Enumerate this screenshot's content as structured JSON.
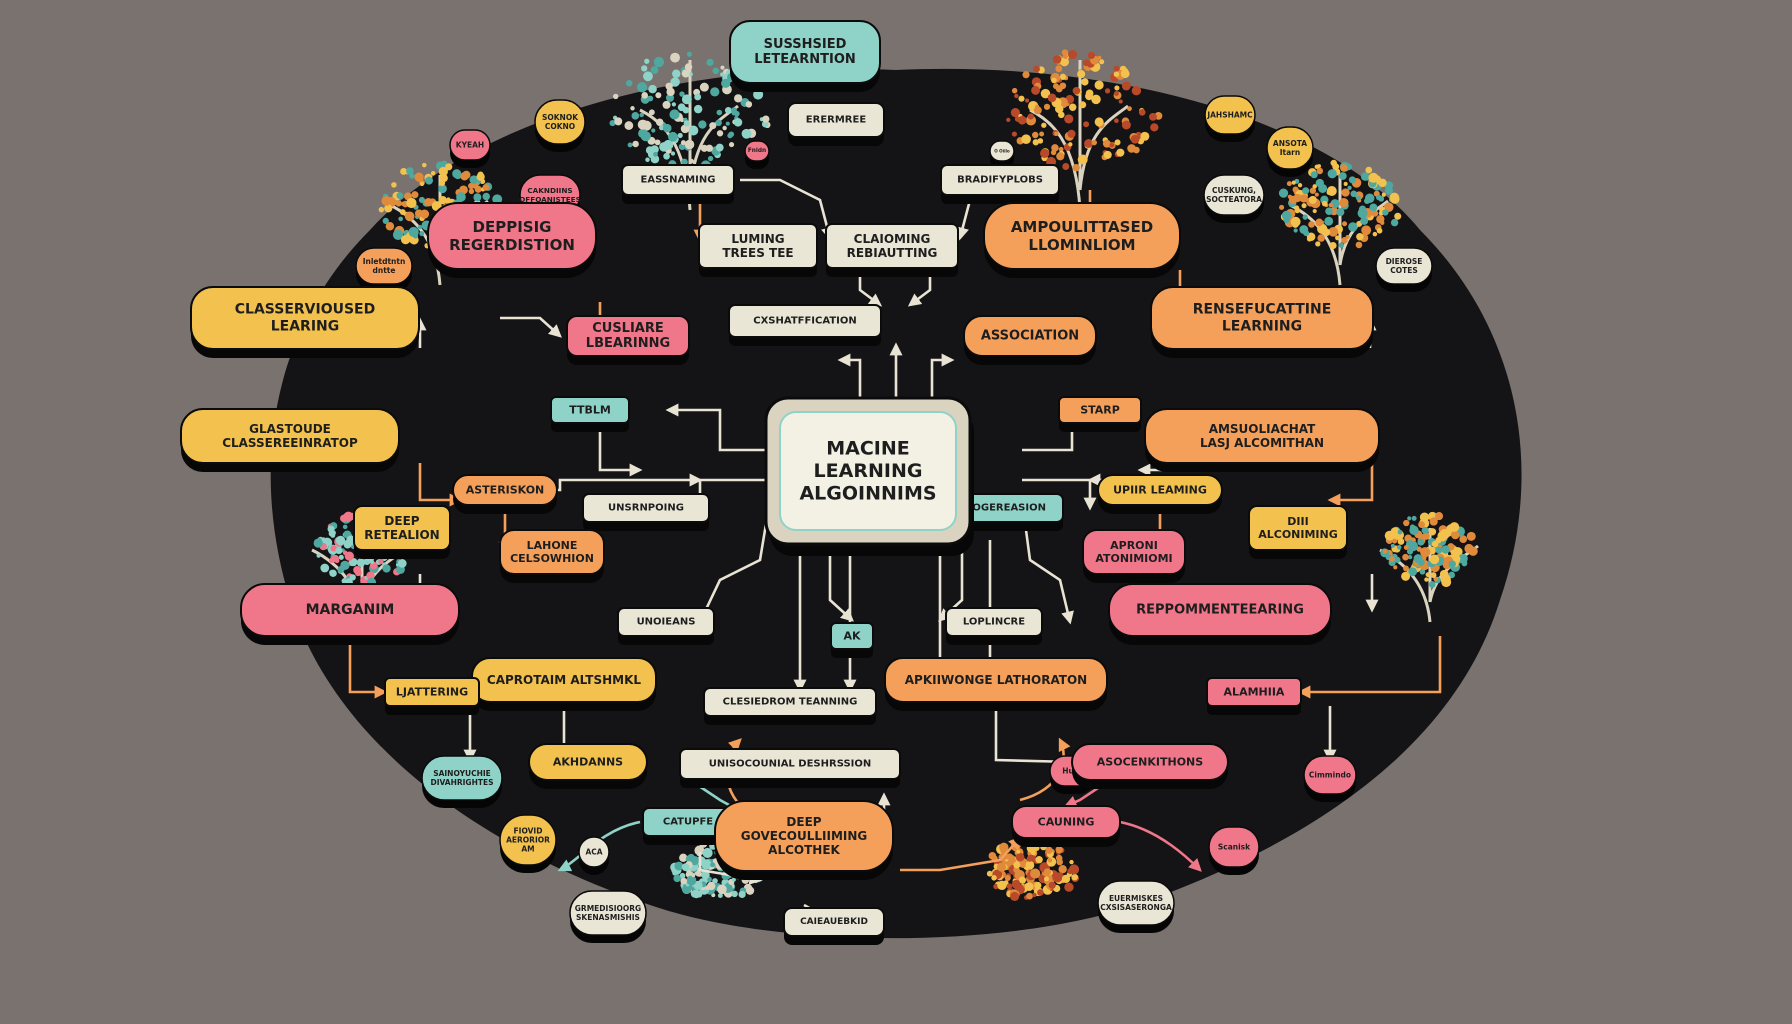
{
  "center": {
    "lines": [
      "MACINE",
      "LEARNING",
      "ALGOINNIMS"
    ]
  },
  "nodes": [
    {
      "id": "n01",
      "lines": [
        "SUSSHSIED",
        "LETEARNTION"
      ],
      "color": "#8fd3c8"
    },
    {
      "id": "n02",
      "lines": [
        "ERERMREE"
      ],
      "color": "#eae6d6"
    },
    {
      "id": "n03",
      "lines": [
        "EASSNAMING"
      ],
      "color": "#eae6d6"
    },
    {
      "id": "n04",
      "lines": [
        "BRADIFYPLOBS"
      ],
      "color": "#eae6d6"
    },
    {
      "id": "n05",
      "lines": [
        "DEPPISIG",
        "REGERDISTION"
      ],
      "color": "#f0768a"
    },
    {
      "id": "n06",
      "lines": [
        "LUMING",
        "TREES TEE"
      ],
      "color": "#eae6d6"
    },
    {
      "id": "n07",
      "lines": [
        "CLAIOMING",
        "REBIAUTTING"
      ],
      "color": "#eae6d6"
    },
    {
      "id": "n08",
      "lines": [
        "AMPOULITTASED",
        "LLOMINLIOM"
      ],
      "color": "#f5a05a"
    },
    {
      "id": "n09",
      "lines": [
        "CLASSERVIOUSED",
        "LEARING"
      ],
      "color": "#f2c14e"
    },
    {
      "id": "n10",
      "lines": [
        "CUSLIARE",
        "LBEARINNG"
      ],
      "color": "#f0768a"
    },
    {
      "id": "n11",
      "lines": [
        "CXSHATFFICATION"
      ],
      "color": "#eae6d6"
    },
    {
      "id": "n12",
      "lines": [
        "ASSOCIATION"
      ],
      "color": "#f5a05a"
    },
    {
      "id": "n13",
      "lines": [
        "RENSEFUCATTINE",
        "LEARNING"
      ],
      "color": "#f5a05a"
    },
    {
      "id": "n14",
      "lines": [
        "TTBLM"
      ],
      "color": "#8fd3c8"
    },
    {
      "id": "n15",
      "lines": [
        "STARP"
      ],
      "color": "#f5a05a"
    },
    {
      "id": "n16",
      "lines": [
        "GLASTOUDE",
        "CLASSEREEINRATOP"
      ],
      "color": "#f2c14e"
    },
    {
      "id": "n17",
      "lines": [
        "AMSUOLIACHAT",
        "LASJ  ALCOMITHAN"
      ],
      "color": "#f5a05a"
    },
    {
      "id": "n18",
      "lines": [
        "ASTERISKON"
      ],
      "color": "#f5a05a"
    },
    {
      "id": "n19",
      "lines": [
        "UPIIR LEAMING"
      ],
      "color": "#f2c14e"
    },
    {
      "id": "n20",
      "lines": [
        "UNSRNPOING"
      ],
      "color": "#eae6d6"
    },
    {
      "id": "n21",
      "lines": [
        "RPPOGEREASION"
      ],
      "color": "#8fd3c8"
    },
    {
      "id": "n22",
      "lines": [
        "DEEP",
        "RETEALION"
      ],
      "color": "#f2c14e"
    },
    {
      "id": "n23",
      "lines": [
        "LAHONE",
        "CELSOWHION"
      ],
      "color": "#f5a05a"
    },
    {
      "id": "n24",
      "lines": [
        "APRONI",
        "ATONIMIOMI"
      ],
      "color": "#f0768a"
    },
    {
      "id": "n25",
      "lines": [
        "DIII",
        "ALCONIMING"
      ],
      "color": "#f2c14e"
    },
    {
      "id": "n26",
      "lines": [
        "MARGANIM"
      ],
      "color": "#f0768a"
    },
    {
      "id": "n27",
      "lines": [
        "UNOIEANS"
      ],
      "color": "#eae6d6"
    },
    {
      "id": "n28",
      "lines": [
        "AK"
      ],
      "color": "#8fd3c8"
    },
    {
      "id": "n29",
      "lines": [
        "LOPLINCRE"
      ],
      "color": "#eae6d6"
    },
    {
      "id": "n30",
      "lines": [
        "REPPOMMENTEEARING"
      ],
      "color": "#f0768a"
    },
    {
      "id": "n31",
      "lines": [
        "CAPROTAIM  ALTSHMKL"
      ],
      "color": "#f2c14e"
    },
    {
      "id": "n32",
      "lines": [
        "APKIIWONGE LATHORATON"
      ],
      "color": "#f5a05a"
    },
    {
      "id": "n33",
      "lines": [
        "LJATTERING"
      ],
      "color": "#f2c14e"
    },
    {
      "id": "n34",
      "lines": [
        "CLESIEDROM TEANNING"
      ],
      "color": "#eae6d6"
    },
    {
      "id": "n35",
      "lines": [
        "ALAMHIIA"
      ],
      "color": "#f0768a"
    },
    {
      "id": "n36",
      "lines": [
        "AKHDANNS"
      ],
      "color": "#f2c14e"
    },
    {
      "id": "n37",
      "lines": [
        "UNISOCOUNIAL DESHRSSION"
      ],
      "color": "#eae6d6"
    },
    {
      "id": "n38",
      "lines": [
        "ASOCENKITHONS"
      ],
      "color": "#f0768a"
    },
    {
      "id": "n39",
      "lines": [
        "CATUPFE"
      ],
      "color": "#8fd3c8"
    },
    {
      "id": "n40",
      "lines": [
        "DEEP",
        "GOVECOULLIIMING",
        "ALCOTHEK"
      ],
      "color": "#f5a05a"
    },
    {
      "id": "n41",
      "lines": [
        "CAUNING"
      ],
      "color": "#f0768a"
    },
    {
      "id": "n42",
      "lines": [
        "CAIEAUEBKID"
      ],
      "color": "#eae6d6"
    }
  ],
  "badges": [
    {
      "id": "b01",
      "lines": [
        "SOKNOK",
        "COKNO"
      ],
      "color": "#f2c14e"
    },
    {
      "id": "b02",
      "lines": [
        "KYEAH"
      ],
      "color": "#f0768a"
    },
    {
      "id": "b03",
      "lines": [
        "CAKNDIINS",
        "OFFOANISTEES"
      ],
      "color": "#f0768a"
    },
    {
      "id": "b04",
      "lines": [
        "Fnidn"
      ],
      "color": "#f0768a"
    },
    {
      "id": "b05",
      "lines": [
        "O Oiilo"
      ],
      "color": "#eae6d6"
    },
    {
      "id": "b06",
      "lines": [
        "JAHSHAMC"
      ],
      "color": "#f2c14e"
    },
    {
      "id": "b07",
      "lines": [
        "ANSOTA",
        "Itarn"
      ],
      "color": "#f2c14e"
    },
    {
      "id": "b08",
      "lines": [
        "CUSKUNG,",
        "SOCTEATORA"
      ],
      "color": "#eae6d6"
    },
    {
      "id": "b09",
      "lines": [
        "Inletdtntn",
        "dntte"
      ],
      "color": "#f5a05a"
    },
    {
      "id": "b10",
      "lines": [
        "DIEROSE",
        "COTES"
      ],
      "color": "#eae6d6"
    },
    {
      "id": "b11",
      "lines": [
        "SAINOYUCHIE",
        "DIVAHRIGHTES"
      ],
      "color": "#8fd3c8"
    },
    {
      "id": "b12",
      "lines": [
        "FIOVID",
        "AERORIOR",
        "AM"
      ],
      "color": "#f2c14e"
    },
    {
      "id": "b13",
      "lines": [
        "ACA"
      ],
      "color": "#eae6d6"
    },
    {
      "id": "b14",
      "lines": [
        "GRMEDISIOORG",
        "SKENASMISHIS"
      ],
      "color": "#eae6d6"
    },
    {
      "id": "b15",
      "lines": [
        "EUERMISKES",
        "CXSISASERONGA"
      ],
      "color": "#eae6d6"
    },
    {
      "id": "b16",
      "lines": [
        "Scanisk"
      ],
      "color": "#f0768a"
    },
    {
      "id": "b17",
      "lines": [
        "Cimmindo"
      ],
      "color": "#f0768a"
    },
    {
      "id": "b18",
      "lines": [
        "Hulb"
      ],
      "color": "#f0768a"
    }
  ],
  "decorations": [
    {
      "id": "tree-top-left",
      "kind": "tree",
      "foliage": [
        "#8fd3c8",
        "#4fa8a0",
        "#d9d3c0"
      ]
    },
    {
      "id": "tree-top-right",
      "kind": "tree",
      "foliage": [
        "#e08a3c",
        "#b84a2a",
        "#f2c14e"
      ]
    },
    {
      "id": "tree-left",
      "kind": "tree",
      "foliage": [
        "#4fa8a0",
        "#f2c14e",
        "#e08a3c"
      ]
    },
    {
      "id": "tree-right",
      "kind": "tree",
      "foliage": [
        "#f2c14e",
        "#4fa8a0",
        "#e08a3c"
      ]
    },
    {
      "id": "tree-mid-left",
      "kind": "tree",
      "foliage": [
        "#4fa8a0",
        "#8fd3c8",
        "#f0768a"
      ]
    },
    {
      "id": "tree-mid-right",
      "kind": "tree",
      "foliage": [
        "#4fa8a0",
        "#f2c14e",
        "#e08a3c"
      ]
    },
    {
      "id": "bush-bottom-left",
      "kind": "bush",
      "foliage": [
        "#8fd3c8",
        "#d9d3c0",
        "#4fa8a0"
      ]
    },
    {
      "id": "bush-bottom-right",
      "kind": "bush",
      "foliage": [
        "#e08a3c",
        "#b84a2a",
        "#f2c14e"
      ]
    }
  ],
  "colors": {
    "background": "#7a726e",
    "board": "#141416",
    "connector_cream": "#e8e3d3",
    "connector_teal": "#8fd3c8",
    "connector_orange": "#f5a05a",
    "connector_pink": "#f0768a"
  }
}
